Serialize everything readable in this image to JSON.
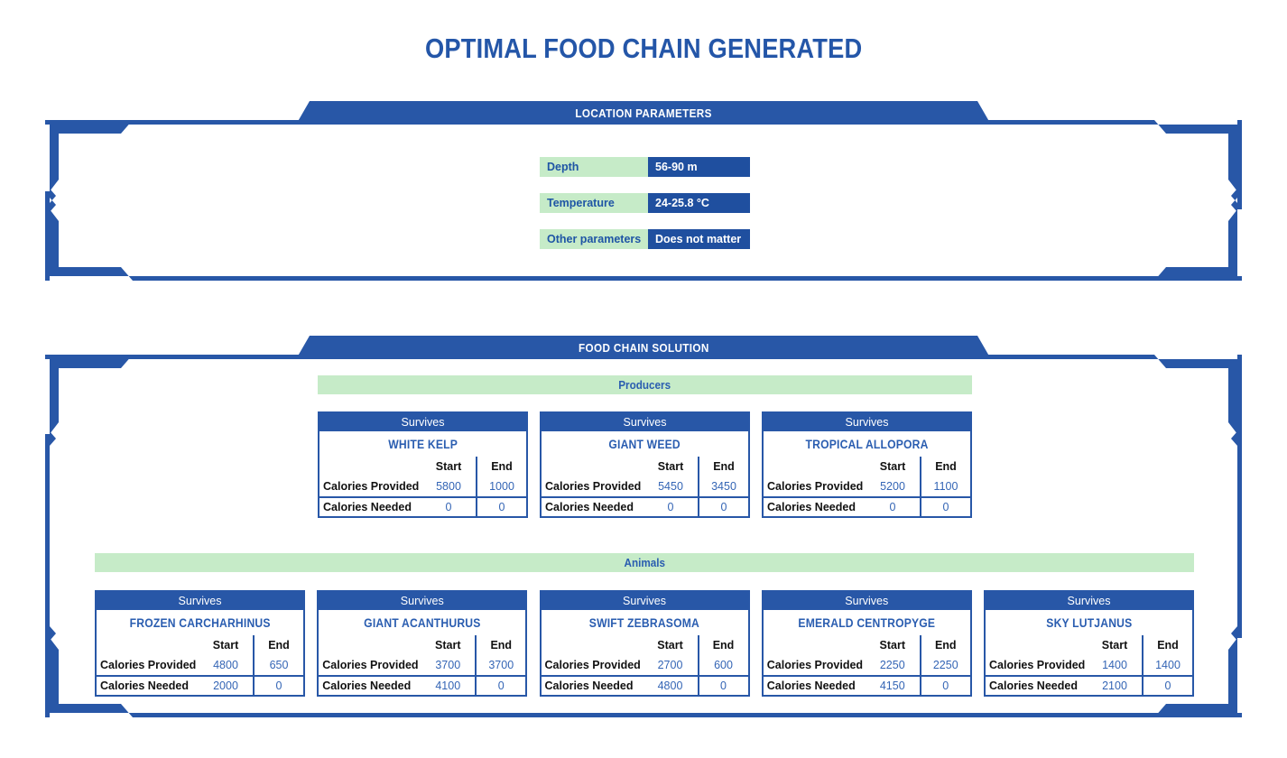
{
  "page": {
    "title": "OPTIMAL FOOD CHAIN GENERATED"
  },
  "colors": {
    "frame_blue": "#2857A7",
    "value_cell_blue": "#1F4F9F",
    "title_blue": "#2456A8",
    "name_blue": "#2A5DB0",
    "number_blue": "#3465B5",
    "light_green": "#C6EBC8",
    "param_label_blue": "#1F55A5",
    "table_text_black": "#111111"
  },
  "location_panel": {
    "header": "LOCATION PARAMETERS",
    "parameters": [
      {
        "label": "Depth",
        "value": "56-90 m"
      },
      {
        "label": "Temperature",
        "value": "24-25.8 °C"
      },
      {
        "label": "Other parameters",
        "value": "Does not matter"
      }
    ]
  },
  "card_labels": {
    "header": "Survives",
    "col_start": "Start",
    "col_end": "End",
    "row_provided": "Calories Provided",
    "row_needed": "Calories Needed"
  },
  "solution_panel": {
    "header": "FOOD CHAIN SOLUTION",
    "groups": [
      {
        "label": "Producers",
        "cards": [
          {
            "name": "WHITE KELP",
            "values": {
              "provided_start": "5800",
              "provided_end": "1000",
              "needed_start": "0",
              "needed_end": "0"
            }
          },
          {
            "name": "GIANT WEED",
            "values": {
              "provided_start": "5450",
              "provided_end": "3450",
              "needed_start": "0",
              "needed_end": "0"
            }
          },
          {
            "name": "TROPICAL ALLOPORA",
            "values": {
              "provided_start": "5200",
              "provided_end": "1100",
              "needed_start": "0",
              "needed_end": "0"
            }
          }
        ]
      },
      {
        "label": "Animals",
        "cards": [
          {
            "name": "FROZEN CARCHARHINUS",
            "values": {
              "provided_start": "4800",
              "provided_end": "650",
              "needed_start": "2000",
              "needed_end": "0"
            }
          },
          {
            "name": "GIANT ACANTHURUS",
            "values": {
              "provided_start": "3700",
              "provided_end": "3700",
              "needed_start": "4100",
              "needed_end": "0"
            }
          },
          {
            "name": "SWIFT ZEBRASOMA",
            "values": {
              "provided_start": "2700",
              "provided_end": "600",
              "needed_start": "4800",
              "needed_end": "0"
            }
          },
          {
            "name": "EMERALD CENTROPYGE",
            "values": {
              "provided_start": "2250",
              "provided_end": "2250",
              "needed_start": "4150",
              "needed_end": "0"
            }
          },
          {
            "name": "SKY LUTJANUS",
            "values": {
              "provided_start": "1400",
              "provided_end": "1400",
              "needed_start": "2100",
              "needed_end": "0"
            }
          }
        ]
      }
    ]
  }
}
